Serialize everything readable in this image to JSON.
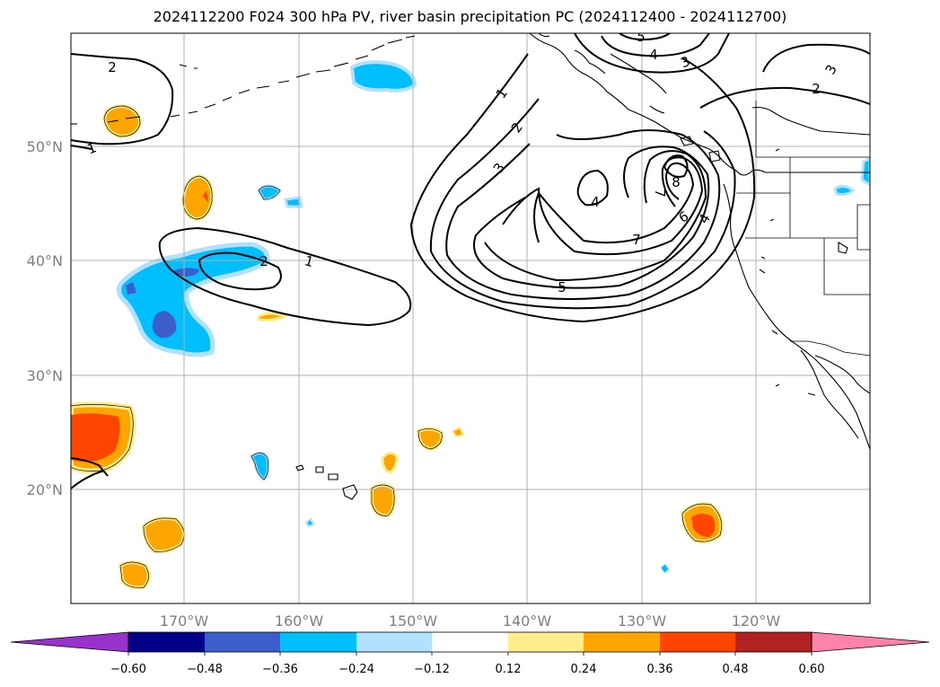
{
  "title": "2024112200 F024 300 hPa PV, river basin precipitation PC (2024112400 - 2024112700)",
  "axes": {
    "lat_ticks": [
      "50°N",
      "40°N",
      "30°N",
      "20°N"
    ],
    "lon_ticks": [
      "170°W",
      "160°W",
      "150°W",
      "140°W",
      "130°W",
      "120°W"
    ]
  },
  "colorbar": {
    "ticks": [
      "−0.60",
      "−0.48",
      "−0.36",
      "−0.24",
      "−0.12",
      "0.12",
      "0.24",
      "0.36",
      "0.48",
      "0.60"
    ],
    "bins": [
      {
        "color": "#9932cc"
      },
      {
        "color": "#00008b"
      },
      {
        "color": "#3a5fcd"
      },
      {
        "color": "#00bfff"
      },
      {
        "color": "#b0e2ff"
      },
      {
        "color": "#ffffff"
      },
      {
        "color": "#ffec8b"
      },
      {
        "color": "#ffa500"
      },
      {
        "color": "#ff4500"
      },
      {
        "color": "#b22222"
      },
      {
        "color": "#ff82ab"
      }
    ]
  },
  "contour_labels": [
    {
      "text": "1"
    },
    {
      "text": "2"
    },
    {
      "text": "3"
    },
    {
      "text": "4"
    },
    {
      "text": "5"
    },
    {
      "text": "6"
    },
    {
      "text": "7"
    },
    {
      "text": "8"
    },
    {
      "text": "4"
    },
    {
      "text": "7"
    },
    {
      "text": "5"
    },
    {
      "text": "4"
    },
    {
      "text": "3"
    },
    {
      "text": "2"
    },
    {
      "text": "3"
    },
    {
      "text": "2"
    },
    {
      "text": "1"
    },
    {
      "text": "2"
    },
    {
      "text": "1"
    }
  ]
}
